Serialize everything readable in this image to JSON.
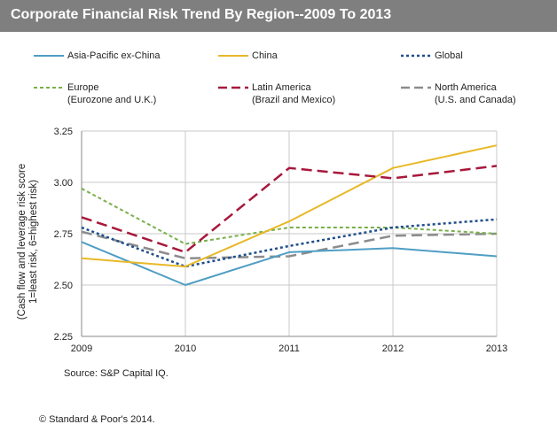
{
  "title": "Corporate Financial Risk  Trend By Region--2009  To 2013",
  "source": "Source: S&P Capital IQ.",
  "copyright": "© Standard & Poor's 2014.",
  "colors": {
    "title_bar": "#7f7f7f",
    "asia_pacific": "#4f9ec4",
    "china": "#e8b828",
    "global": "#1f4e8c",
    "europe": "#78b04a",
    "latin_america": "#a8183c",
    "north_america": "#8c8c8c"
  },
  "legend": [
    {
      "name": "Asia-Pacific ex-China",
      "sub": ""
    },
    {
      "name": "China",
      "sub": ""
    },
    {
      "name": "Global",
      "sub": ""
    },
    {
      "name": "Europe",
      "sub": "(Eurozone and U.K.)"
    },
    {
      "name": "Latin America",
      "sub": "(Brazil and Mexico)"
    },
    {
      "name": "North America",
      "sub": "(U.S. and Canada)"
    }
  ],
  "y_title_line1": "(Cash flow and leverage risk score",
  "y_title_line2": "1=least risk, 6=highest risk)",
  "chart_data": {
    "type": "line",
    "x": [
      "2009",
      "2010",
      "2011",
      "2012",
      "2013"
    ],
    "ylim": [
      2.25,
      3.25
    ],
    "yticks": [
      "3.25",
      "3.00",
      "2.75",
      "2.50",
      "2.25"
    ],
    "grid": true,
    "ylabel": "(Cash flow and leverage risk score 1=least risk, 6=highest risk)",
    "series": [
      {
        "name": "Asia-Pacific ex-China",
        "style": "solid",
        "values": [
          2.71,
          2.5,
          2.66,
          2.68,
          2.64
        ]
      },
      {
        "name": "China",
        "style": "solid",
        "values": [
          2.63,
          2.59,
          2.81,
          3.07,
          3.18
        ]
      },
      {
        "name": "Global",
        "style": "dotted",
        "values": [
          2.78,
          2.59,
          2.69,
          2.78,
          2.82
        ]
      },
      {
        "name": "Europe",
        "sub": "(Eurozone and U.K.)",
        "style": "dashed",
        "values": [
          2.97,
          2.7,
          2.78,
          2.78,
          2.75
        ]
      },
      {
        "name": "Latin America",
        "sub": "(Brazil and Mexico)",
        "style": "longdash",
        "values": [
          2.83,
          2.66,
          3.07,
          3.02,
          3.08
        ]
      },
      {
        "name": "North America",
        "sub": "(U.S. and Canada)",
        "style": "longdash",
        "values": [
          2.76,
          2.63,
          2.64,
          2.74,
          2.75
        ]
      }
    ]
  }
}
